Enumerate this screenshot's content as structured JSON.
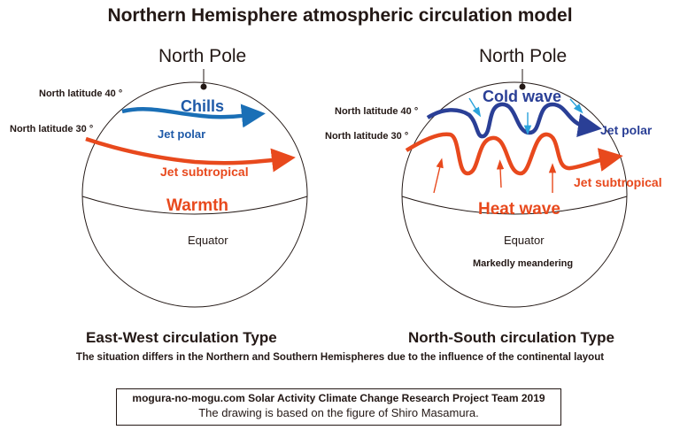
{
  "title": "Northern Hemisphere atmospheric circulation model",
  "left": {
    "pole": "North Pole",
    "lat40": "North latitude 40 °",
    "lat30": "North latitude 30 °",
    "cold_label": "Chills",
    "polar_jet": "Jet polar",
    "subtropical_jet": "Jet subtropical",
    "warm_label": "Warmth",
    "equator": "Equator",
    "type": "East-West circulation Type"
  },
  "right": {
    "pole": "North Pole",
    "lat40": "North latitude 40 °",
    "lat30": "North latitude 30 °",
    "cold_label": "Cold wave",
    "polar_jet": "Jet polar",
    "subtropical_jet": "Jet subtropical",
    "warm_label": "Heat wave",
    "equator": "Equator",
    "meander": "Markedly meandering",
    "type": "North-South circulation Type"
  },
  "note": "The situation differs in the Northern and Southern Hemispheres due to the influence of the continental layout",
  "credit": {
    "line1": "mogura-no-mogu.com  Solar Activity Climate Change Research Project Team 2019",
    "line2": "The drawing is based on the figure of Shiro Masamura."
  },
  "colors": {
    "polar_left": "#1a6fb6",
    "polar_right": "#2a3f96",
    "subtropical": "#e8491d",
    "cold_arrows": "#2aa3dc"
  }
}
